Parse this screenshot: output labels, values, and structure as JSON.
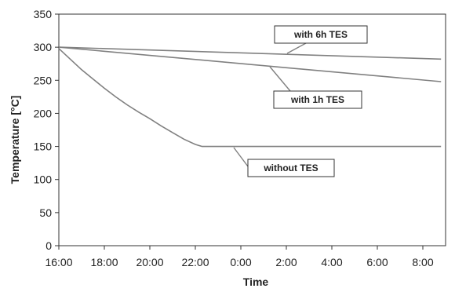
{
  "chart_data": {
    "type": "line",
    "title": "",
    "xlabel": "Time",
    "ylabel": "Temperature [°C]",
    "x_categories": [
      "16:00",
      "18:00",
      "20:00",
      "22:00",
      "0:00",
      "2:00",
      "4:00",
      "6:00",
      "8:00"
    ],
    "xlim_hours": [
      16,
      33
    ],
    "ylim": [
      0,
      350
    ],
    "yticks": [
      0,
      50,
      100,
      150,
      200,
      250,
      300,
      350
    ],
    "grid": false,
    "series": [
      {
        "name": "with 6h TES",
        "x_hours": [
          16,
          32.8
        ],
        "values": [
          300,
          282
        ]
      },
      {
        "name": "with 1h TES",
        "x_hours": [
          16,
          32.8
        ],
        "values": [
          300,
          248
        ]
      },
      {
        "name": "without TES",
        "x_hours": [
          16,
          16.5,
          17,
          17.5,
          18,
          18.5,
          19,
          19.5,
          20,
          20.5,
          21,
          21.5,
          22,
          22.3,
          23,
          25,
          28,
          32.8
        ],
        "values": [
          298,
          282,
          266,
          252,
          238,
          225,
          213,
          202,
          192,
          181,
          171,
          161,
          153,
          150,
          150,
          150,
          150,
          150
        ]
      }
    ],
    "annotations": [
      {
        "text": "with 6h TES",
        "points_to_series": "with 6h TES"
      },
      {
        "text": "with 1h TES",
        "points_to_series": "with 1h TES"
      },
      {
        "text": "without TES",
        "points_to_series": "without TES"
      }
    ]
  },
  "colors": {
    "line": "#808080",
    "axis": "#333333",
    "text": "#222222",
    "callout_border": "#333333",
    "background": "#ffffff"
  }
}
